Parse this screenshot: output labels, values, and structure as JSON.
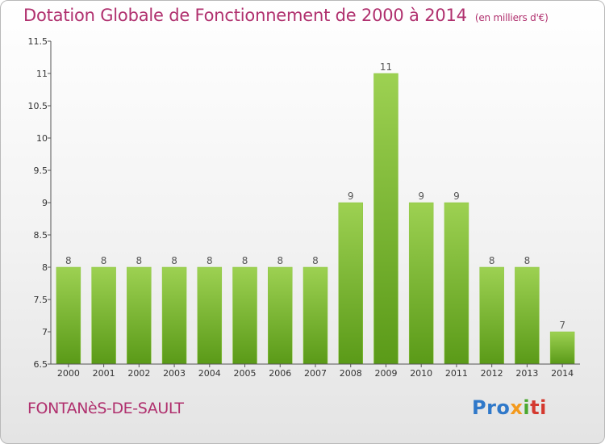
{
  "chart_data": {
    "type": "bar",
    "title": "Dotation Globale de Fonctionnement de 2000 à 2014",
    "subtitle": "(en milliers d'€)",
    "categories": [
      "2000",
      "2001",
      "2002",
      "2003",
      "2004",
      "2005",
      "2006",
      "2007",
      "2008",
      "2009",
      "2010",
      "2011",
      "2012",
      "2013",
      "2014"
    ],
    "values": [
      8,
      8,
      8,
      8,
      8,
      8,
      8,
      8,
      9,
      11,
      9,
      9,
      8,
      8,
      7
    ],
    "data_labels": [
      "8",
      "8",
      "8",
      "8",
      "8",
      "8",
      "8",
      "8",
      "9",
      "11",
      "9",
      "9",
      "8",
      "8",
      "7"
    ],
    "ylim": [
      6.5,
      11.5
    ],
    "yticks": [
      6.5,
      7,
      7.5,
      8,
      8.5,
      9,
      9.5,
      10,
      10.5,
      11,
      11.5
    ],
    "ytick_labels": [
      "6.5",
      "7",
      "7.5",
      "8",
      "8.5",
      "9",
      "9.5",
      "10",
      "10.5",
      "11",
      "11.5"
    ],
    "xlabel": "",
    "ylabel": "",
    "grid": false,
    "bar_color_top": "#9dd152",
    "bar_color_bottom": "#5a9a18"
  },
  "place_name": "FONTANèS-DE-SAULT",
  "logo": {
    "parts": [
      "Pro",
      "x",
      "i",
      "ti"
    ],
    "text": "Proxiti"
  },
  "colors": {
    "title": "#b0306e",
    "axis": "#555555"
  }
}
